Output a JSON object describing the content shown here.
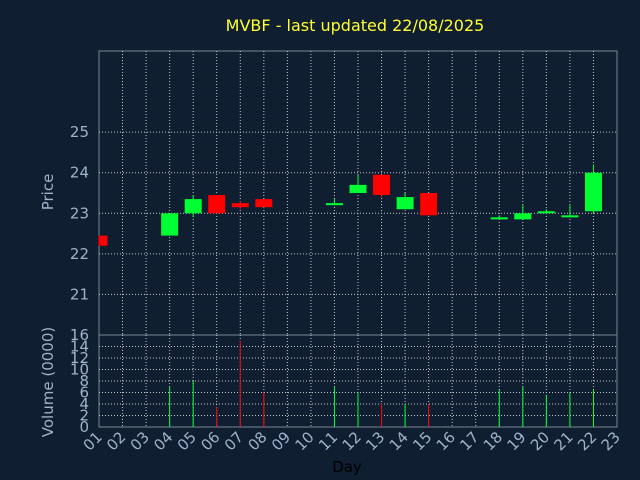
{
  "chart_data": {
    "type": "candlestick",
    "title": "MVBF - last updated 22/08/2025",
    "xlabel": "Day",
    "x_ticks": [
      "01",
      "02",
      "03",
      "04",
      "05",
      "06",
      "07",
      "08",
      "09",
      "10",
      "11",
      "12",
      "13",
      "14",
      "15",
      "16",
      "17",
      "18",
      "19",
      "20",
      "21",
      "22",
      "23"
    ],
    "grid": true,
    "up_color": "#00ff33",
    "down_color": "#ff0000",
    "price": {
      "ylabel": "Price",
      "ylim": [
        20,
        27
      ],
      "y_ticks": [
        21,
        22,
        23,
        24,
        25
      ],
      "candles": [
        {
          "day": 1,
          "open": 22.45,
          "high": 22.45,
          "low": 22.2,
          "close": 22.2
        },
        {
          "day": 4,
          "open": 22.45,
          "high": 23.0,
          "low": 22.45,
          "close": 23.0
        },
        {
          "day": 5,
          "open": 23.0,
          "high": 23.45,
          "low": 22.9,
          "close": 23.35
        },
        {
          "day": 6,
          "open": 23.45,
          "high": 23.45,
          "low": 23.0,
          "close": 23.0
        },
        {
          "day": 7,
          "open": 23.25,
          "high": 23.3,
          "low": 23.1,
          "close": 23.15
        },
        {
          "day": 8,
          "open": 23.35,
          "high": 23.35,
          "low": 23.15,
          "close": 23.15
        },
        {
          "day": 11,
          "open": 23.2,
          "high": 23.35,
          "low": 23.2,
          "close": 23.25
        },
        {
          "day": 12,
          "open": 23.5,
          "high": 23.95,
          "low": 23.5,
          "close": 23.7
        },
        {
          "day": 13,
          "open": 23.95,
          "high": 23.95,
          "low": 23.4,
          "close": 23.45
        },
        {
          "day": 14,
          "open": 23.1,
          "high": 23.5,
          "low": 23.1,
          "close": 23.4
        },
        {
          "day": 15,
          "open": 23.5,
          "high": 23.5,
          "low": 22.95,
          "close": 22.95
        },
        {
          "day": 18,
          "open": 22.85,
          "high": 22.95,
          "low": 22.85,
          "close": 22.9
        },
        {
          "day": 19,
          "open": 22.85,
          "high": 23.2,
          "low": 22.85,
          "close": 23.0
        },
        {
          "day": 20,
          "open": 23.0,
          "high": 23.1,
          "low": 23.0,
          "close": 23.05
        },
        {
          "day": 21,
          "open": 22.9,
          "high": 23.2,
          "low": 22.9,
          "close": 22.95
        },
        {
          "day": 22,
          "open": 23.05,
          "high": 24.2,
          "low": 23.0,
          "close": 24.0
        }
      ]
    },
    "volume": {
      "ylabel": "Volume (0000)",
      "ylim": [
        0,
        16
      ],
      "y_ticks": [
        0,
        2,
        4,
        6,
        8,
        10,
        12,
        14,
        16
      ],
      "bars": [
        {
          "day": 4,
          "value": 7.0,
          "direction": "up"
        },
        {
          "day": 5,
          "value": 8.0,
          "direction": "up"
        },
        {
          "day": 6,
          "value": 3.5,
          "direction": "down"
        },
        {
          "day": 7,
          "value": 15.0,
          "direction": "down"
        },
        {
          "day": 8,
          "value": 6.0,
          "direction": "down"
        },
        {
          "day": 11,
          "value": 7.0,
          "direction": "up"
        },
        {
          "day": 12,
          "value": 6.0,
          "direction": "up"
        },
        {
          "day": 13,
          "value": 4.0,
          "direction": "down"
        },
        {
          "day": 14,
          "value": 4.0,
          "direction": "up"
        },
        {
          "day": 15,
          "value": 4.0,
          "direction": "down"
        },
        {
          "day": 18,
          "value": 6.5,
          "direction": "up"
        },
        {
          "day": 19,
          "value": 7.0,
          "direction": "up"
        },
        {
          "day": 20,
          "value": 5.5,
          "direction": "up"
        },
        {
          "day": 21,
          "value": 6.0,
          "direction": "up"
        },
        {
          "day": 22,
          "value": 6.5,
          "direction": "up"
        }
      ]
    }
  }
}
